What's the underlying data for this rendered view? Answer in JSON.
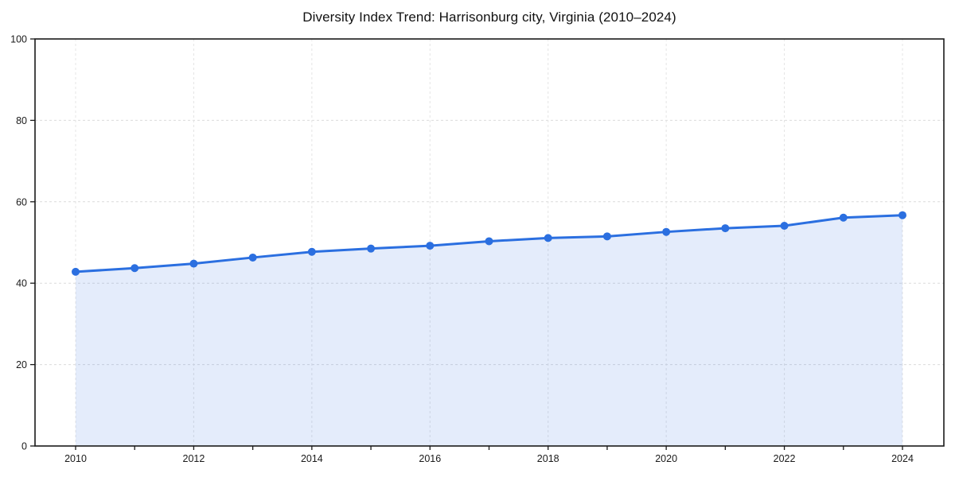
{
  "chart_data": {
    "type": "area",
    "title": "Diversity Index Trend: Harrisonburg city, Virginia (2010–2024)",
    "x": [
      2010,
      2011,
      2012,
      2013,
      2014,
      2015,
      2016,
      2017,
      2018,
      2019,
      2020,
      2021,
      2022,
      2023,
      2024
    ],
    "series": [
      {
        "name": "Diversity Index",
        "values": [
          42.8,
          43.7,
          44.8,
          46.3,
          47.7,
          48.5,
          49.2,
          50.3,
          51.1,
          51.5,
          52.6,
          53.5,
          54.1,
          56.1,
          56.7
        ]
      }
    ],
    "xlabel": "",
    "ylabel": "",
    "ylim": [
      0,
      100
    ],
    "yticks": [
      0,
      20,
      40,
      60,
      80,
      100
    ],
    "xtick_labeled_years": [
      2010,
      2012,
      2014,
      2016,
      2018,
      2020,
      2022,
      2024
    ],
    "grid": true,
    "grid_style": "dashed",
    "legend": false,
    "colors": {
      "line": "#2b6fe0",
      "marker": "#2b6fe0",
      "fill": "rgba(43, 111, 224, 0.13)",
      "grid": "#dcdcdc",
      "axis": "#1a1a1a",
      "tick_text": "#1a1a1a",
      "title_text": "#111111",
      "background": "#ffffff"
    }
  }
}
